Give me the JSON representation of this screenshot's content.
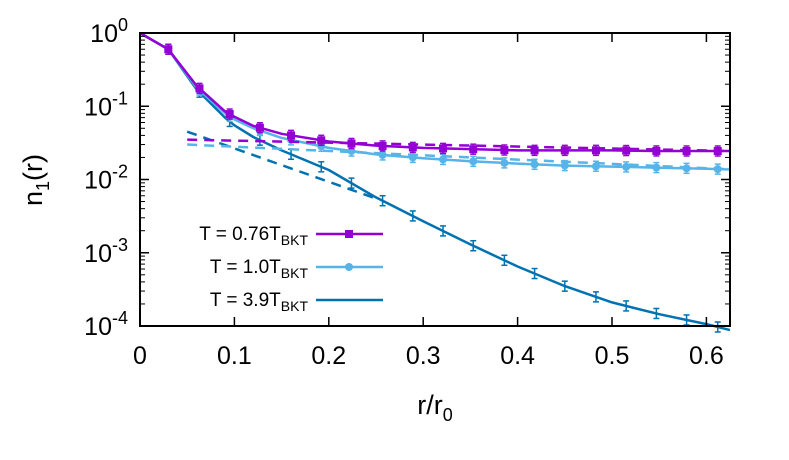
{
  "chart_data": {
    "type": "line",
    "x_scale": "linear",
    "y_scale": "log",
    "xlim": [
      0,
      0.625
    ],
    "ylim": [
      0.0001,
      1
    ],
    "grid": false,
    "legend_position": "bottom-left",
    "xlabel": {
      "main": "r/r",
      "sub": "0"
    },
    "ylabel": {
      "pre": "n",
      "sub": "1",
      "post": "(r)"
    },
    "x_ticks": [
      "0",
      "0.1",
      "0.2",
      "0.3",
      "0.4",
      "0.5",
      "0.6"
    ],
    "x_tick_values": [
      0,
      0.1,
      0.2,
      0.3,
      0.4,
      0.5,
      0.6
    ],
    "y_ticks": [
      {
        "base": "10",
        "exp": "0",
        "value": 1
      },
      {
        "base": "10",
        "exp": "-1",
        "value": 0.1
      },
      {
        "base": "10",
        "exp": "-2",
        "value": 0.01
      },
      {
        "base": "10",
        "exp": "-3",
        "value": 0.001
      },
      {
        "base": "10",
        "exp": "-4",
        "value": 0.0001
      }
    ],
    "series": [
      {
        "name": "T = 0.76T",
        "name_sub": "BKT",
        "color": "#9400d3",
        "marker": "square",
        "x": [
          0,
          0.03,
          0.06,
          0.09,
          0.1,
          0.12,
          0.15,
          0.2,
          0.25,
          0.3,
          0.35,
          0.4,
          0.45,
          0.5,
          0.55,
          0.6,
          0.625
        ],
        "y": [
          1,
          0.6,
          0.19,
          0.085,
          0.072,
          0.054,
          0.042,
          0.033,
          0.029,
          0.027,
          0.026,
          0.025,
          0.025,
          0.025,
          0.0245,
          0.0245,
          0.0245
        ],
        "markers_x": [
          0.03,
          0.063,
          0.095,
          0.127,
          0.16,
          0.192,
          0.224,
          0.257,
          0.289,
          0.321,
          0.353,
          0.386,
          0.418,
          0.45,
          0.483,
          0.515,
          0.547,
          0.579,
          0.612
        ],
        "fit": {
          "x": [
            0.05,
            0.625
          ],
          "y": [
            0.035,
            0.0245
          ]
        }
      },
      {
        "name": "T = 1.0T",
        "name_sub": "BKT",
        "color": "#56b4e9",
        "marker": "circle",
        "x": [
          0,
          0.03,
          0.06,
          0.09,
          0.1,
          0.12,
          0.15,
          0.2,
          0.25,
          0.3,
          0.35,
          0.4,
          0.45,
          0.5,
          0.55,
          0.6,
          0.625
        ],
        "y": [
          1,
          0.6,
          0.18,
          0.08,
          0.066,
          0.05,
          0.037,
          0.027,
          0.022,
          0.0195,
          0.0178,
          0.0165,
          0.0155,
          0.015,
          0.0145,
          0.014,
          0.0137
        ],
        "markers_x": [
          0.03,
          0.063,
          0.095,
          0.127,
          0.16,
          0.192,
          0.224,
          0.257,
          0.289,
          0.321,
          0.353,
          0.386,
          0.418,
          0.45,
          0.483,
          0.515,
          0.547,
          0.579,
          0.612
        ],
        "fit": {
          "x": [
            0.05,
            0.625
          ],
          "y": [
            0.03,
            0.0138
          ]
        }
      },
      {
        "name": "T = 3.9T",
        "name_sub": "BKT",
        "color": "#0072b2",
        "marker": "tick",
        "x": [
          0,
          0.03,
          0.06,
          0.09,
          0.1,
          0.12,
          0.15,
          0.2,
          0.25,
          0.3,
          0.35,
          0.4,
          0.45,
          0.5,
          0.55,
          0.6,
          0.625
        ],
        "y": [
          1,
          0.6,
          0.17,
          0.07,
          0.055,
          0.038,
          0.025,
          0.0135,
          0.0057,
          0.0027,
          0.0013,
          0.00065,
          0.00035,
          0.00021,
          0.000145,
          0.000106,
          8.8e-05
        ],
        "markers_x": [
          0.03,
          0.063,
          0.095,
          0.127,
          0.16,
          0.192,
          0.224,
          0.257,
          0.289,
          0.321,
          0.353,
          0.386,
          0.418,
          0.45,
          0.483,
          0.515,
          0.547,
          0.579,
          0.612
        ],
        "fit": {
          "x": [
            0.05,
            0.25
          ],
          "y": [
            0.045,
            0.0055
          ]
        }
      }
    ]
  }
}
